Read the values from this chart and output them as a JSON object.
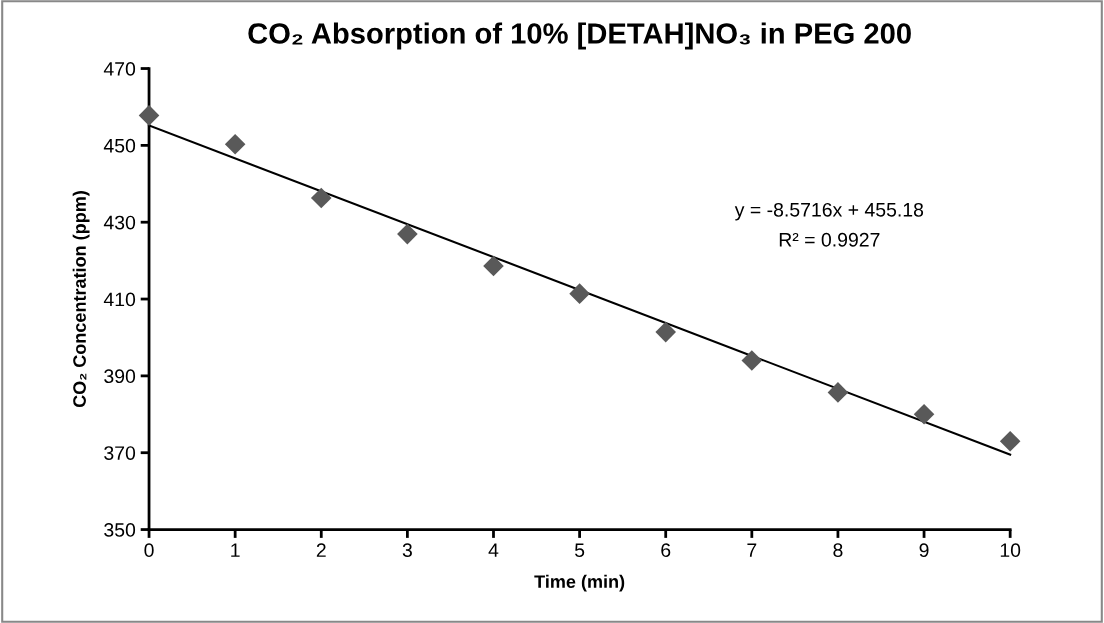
{
  "chart_data": {
    "type": "scatter",
    "title": "CO₂ Absorption of 10% [DETAH]NO₃ in PEG 200",
    "xlabel": "Time (min)",
    "ylabel": "CO₂ Concentration (ppm)",
    "series": [
      {
        "color": "#595959",
        "marker": "diamond",
        "x": [
          0,
          1,
          2,
          3,
          4,
          5,
          6,
          7,
          8,
          9,
          10
        ],
        "values": [
          457.8,
          450.3,
          436.3,
          426.9,
          418.6,
          411.4,
          401.4,
          394.0,
          385.7,
          380.0,
          373.0
        ]
      },
      {
        "type": "line",
        "color": "#000000",
        "marker": "none",
        "line_style": "solid",
        "x": [
          0,
          10
        ],
        "values": [
          455.2,
          369.5
        ]
      }
    ],
    "annotations": [
      "y = -8.5716x + 455.18",
      "R² = 0.9927"
    ],
    "xlim": [
      0,
      10
    ],
    "xticks": [
      0,
      1,
      2,
      3,
      4,
      5,
      6,
      7,
      8,
      9,
      10
    ],
    "ylim": [
      350,
      470
    ],
    "yticks": [
      350,
      370,
      390,
      410,
      430,
      450,
      470
    ],
    "grid": false,
    "legend": false
  }
}
